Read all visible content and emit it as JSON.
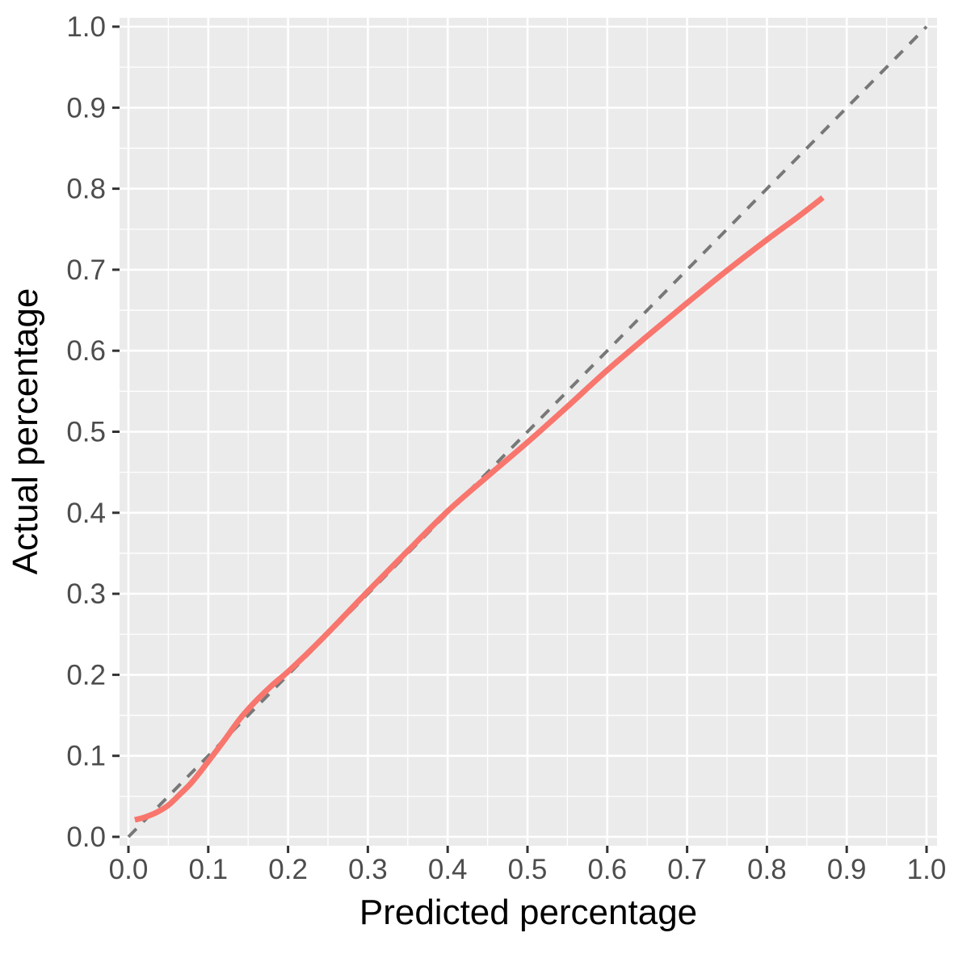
{
  "chart_data": {
    "type": "line",
    "title": "",
    "xlabel": "Predicted percentage",
    "ylabel": "Actual percentage",
    "xlim": [
      -0.011,
      1.013
    ],
    "ylim": [
      -0.011,
      1.011
    ],
    "x_ticks": {
      "values": [
        0,
        0.1,
        0.2,
        0.3,
        0.4,
        0.5,
        0.6,
        0.7,
        0.8,
        0.9,
        1.0
      ],
      "labels": [
        "0.0",
        "0.1",
        "0.2",
        "0.3",
        "0.4",
        "0.5",
        "0.6",
        "0.7",
        "0.8",
        "0.9",
        "1.0"
      ]
    },
    "y_ticks": {
      "values": [
        0,
        0.1,
        0.2,
        0.3,
        0.4,
        0.5,
        0.6,
        0.7,
        0.8,
        0.9,
        1.0
      ],
      "labels": [
        "0.0",
        "0.1",
        "0.2",
        "0.3",
        "0.4",
        "0.5",
        "0.6",
        "0.7",
        "0.8",
        "0.9",
        "1.0"
      ]
    },
    "minor_grid_positions": [
      0.05,
      0.15,
      0.25,
      0.35,
      0.45,
      0.55,
      0.65,
      0.75,
      0.85,
      0.95
    ],
    "grid": {
      "panel_bg": "#ebebeb",
      "major_color": "#ffffff",
      "minor_color": "#ffffff"
    },
    "legend": "none",
    "theme": {
      "tick_mark_color": "#333333",
      "axis_text_color": "#4d4d4d",
      "axis_title_color": "#000000",
      "background": "#ffffff"
    },
    "series": [
      {
        "name": "identity reference (y = x)",
        "style": "dashed",
        "color": "#787878",
        "points": [
          [
            0,
            0
          ],
          [
            1,
            1
          ]
        ]
      },
      {
        "name": "calibration smooth",
        "style": "solid",
        "color": "#F8766D",
        "points": [
          [
            0.008,
            0.021
          ],
          [
            0.02,
            0.024
          ],
          [
            0.035,
            0.03
          ],
          [
            0.05,
            0.039
          ],
          [
            0.065,
            0.053
          ],
          [
            0.08,
            0.068
          ],
          [
            0.1,
            0.093
          ],
          [
            0.12,
            0.119
          ],
          [
            0.14,
            0.146
          ],
          [
            0.16,
            0.168
          ],
          [
            0.18,
            0.187
          ],
          [
            0.2,
            0.204
          ],
          [
            0.23,
            0.232
          ],
          [
            0.26,
            0.262
          ],
          [
            0.3,
            0.303
          ],
          [
            0.35,
            0.353
          ],
          [
            0.4,
            0.402
          ],
          [
            0.45,
            0.445
          ],
          [
            0.5,
            0.487
          ],
          [
            0.55,
            0.531
          ],
          [
            0.6,
            0.576
          ],
          [
            0.65,
            0.618
          ],
          [
            0.7,
            0.659
          ],
          [
            0.75,
            0.699
          ],
          [
            0.8,
            0.737
          ],
          [
            0.84,
            0.766
          ],
          [
            0.87,
            0.789
          ]
        ]
      }
    ]
  }
}
